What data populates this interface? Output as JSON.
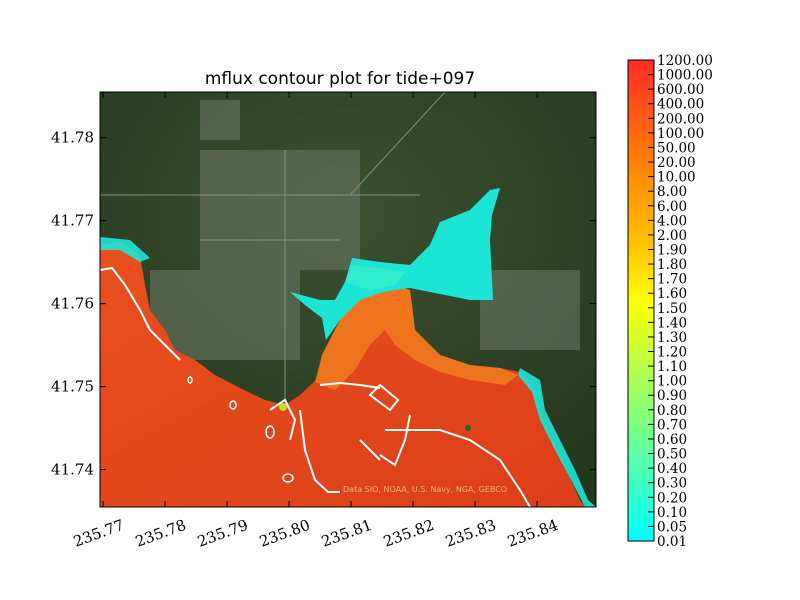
{
  "chart_data": {
    "type": "heatmap",
    "title": "mflux contour plot for tide+097",
    "xlim": [
      235.7695,
      235.8495
    ],
    "ylim": [
      41.7355,
      41.7855
    ],
    "x_ticks": [
      "235.77",
      "235.78",
      "235.79",
      "235.80",
      "235.81",
      "235.82",
      "235.83",
      "235.84"
    ],
    "y_ticks": [
      "41.74",
      "41.75",
      "41.76",
      "41.77",
      "41.78"
    ],
    "colorbar": {
      "levels": [
        "0.01",
        "0.05",
        "0.10",
        "0.20",
        "0.30",
        "0.40",
        "0.50",
        "0.60",
        "0.70",
        "0.80",
        "0.90",
        "1.00",
        "1.10",
        "1.20",
        "1.30",
        "1.40",
        "1.50",
        "1.60",
        "1.70",
        "1.80",
        "1.90",
        "2.00",
        "4.00",
        "6.00",
        "8.00",
        "10.00",
        "20.00",
        "50.00",
        "100.00",
        "200.00",
        "400.00",
        "600.00",
        "1000.00",
        "1200.00"
      ],
      "colors": [
        "#00ffff",
        "#ffff00",
        "#ff0000"
      ]
    },
    "attribution": "Data SIO, NOAA, U.S. Navy, NGA, GEBCO",
    "background": "satellite imagery"
  },
  "colors": {
    "land": "#2e4326",
    "water_high": "#e2461c",
    "water_mid": "#f08020",
    "water_low": "#1ee8d8",
    "shore": "#ffffff"
  }
}
